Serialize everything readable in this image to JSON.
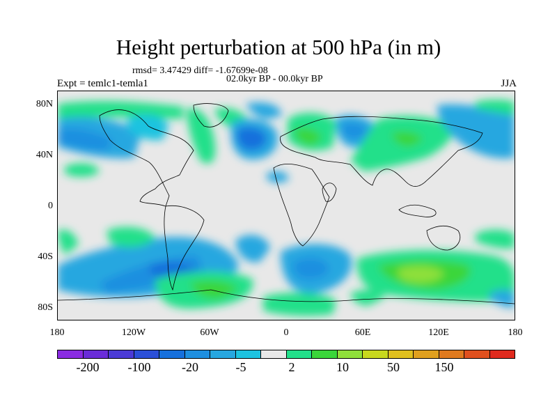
{
  "title": "Height perturbation at 500 hPa (in m)",
  "stats": "rmsd= 3.47429 diff= -1.67699e-08",
  "period": "02.0kyr BP - 00.0kyr BP",
  "experiment": "Expt = temlc1-temla1",
  "season": "JJA",
  "lat_labels": [
    "80N",
    "40N",
    "0",
    "40S",
    "80S"
  ],
  "lon_labels": [
    "180",
    "120W",
    "60W",
    "0",
    "60E",
    "120E",
    "180"
  ],
  "colorbar": {
    "colors": [
      "#8a2be2",
      "#6a2cd8",
      "#4b3ad6",
      "#2b4fd8",
      "#1670dc",
      "#1e8fe0",
      "#27a7e0",
      "#1dc3e0",
      "#e8e8e8",
      "#22e08a",
      "#3ad63a",
      "#8fe03a",
      "#c8d81e",
      "#e0c01e",
      "#e0a01e",
      "#e07a1e",
      "#e0501e",
      "#e02a1e"
    ],
    "labels": [
      "-200",
      "-100",
      "-20",
      "-5",
      "2",
      "10",
      "50",
      "150"
    ]
  }
}
